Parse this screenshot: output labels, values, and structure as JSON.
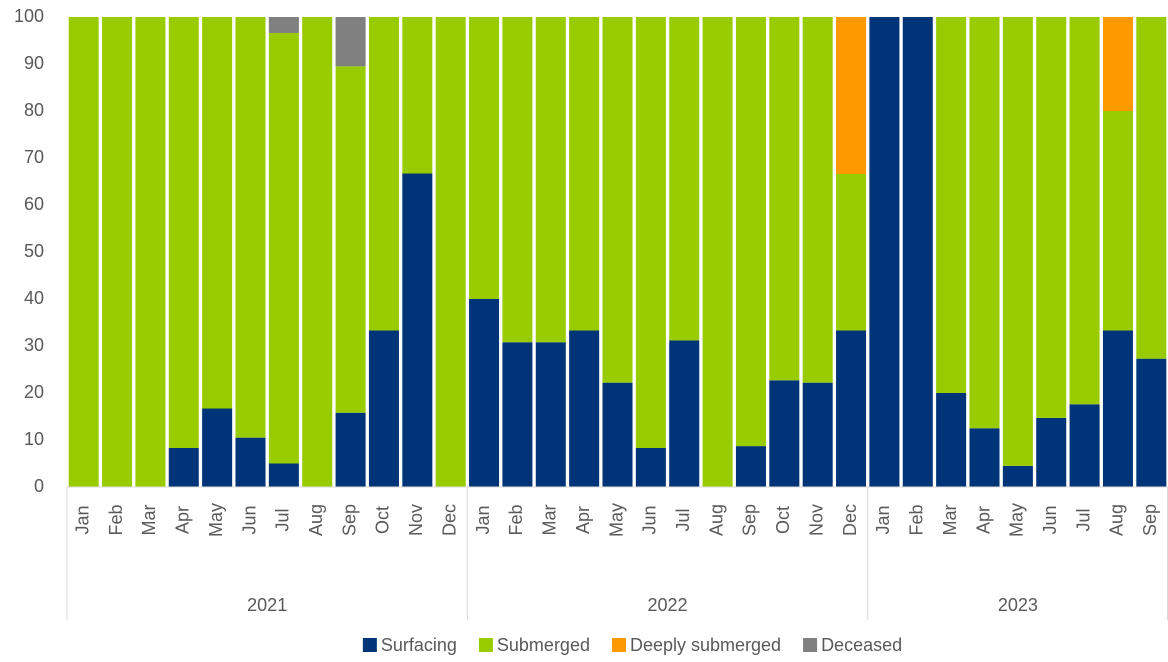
{
  "chart_data": {
    "type": "stacked-bar",
    "categories": [
      "Jan",
      "Feb",
      "Mar",
      "Apr",
      "May",
      "Jun",
      "Jul",
      "Aug",
      "Sep",
      "Oct",
      "Nov",
      "Dec",
      "Jan",
      "Feb",
      "Mar",
      "Apr",
      "May",
      "Jun",
      "Jul",
      "Aug",
      "Sep",
      "Oct",
      "Nov",
      "Dec",
      "Jan",
      "Feb",
      "Mar",
      "Apr",
      "May",
      "Jun",
      "Jul",
      "Aug",
      "Sep"
    ],
    "groups": [
      {
        "label": "2021",
        "size": 12
      },
      {
        "label": "2022",
        "size": 12
      },
      {
        "label": "2023",
        "size": 9
      }
    ],
    "series": [
      {
        "name": "Surfacing",
        "color": "#003478",
        "values": [
          0,
          0,
          0,
          8.3,
          16.7,
          10.5,
          5,
          0,
          15.8,
          33.3,
          66.7,
          0,
          40,
          30.8,
          30.8,
          33.3,
          22.2,
          8.3,
          31.2,
          0,
          8.7,
          22.7,
          22.2,
          33.3,
          100,
          100,
          20,
          12.5,
          4.5,
          14.7,
          17.6,
          33.3,
          27.3
        ]
      },
      {
        "name": "Submerged",
        "color": "#99cc00",
        "values": [
          100,
          100,
          100,
          91.7,
          83.3,
          89.5,
          91.6,
          100,
          73.7,
          66.7,
          33.3,
          100,
          60,
          69.2,
          69.2,
          66.7,
          77.8,
          91.7,
          68.8,
          100,
          91.3,
          77.3,
          77.8,
          33.3,
          0,
          0,
          80,
          87.5,
          95.5,
          85.3,
          82.4,
          46.7,
          72.7
        ]
      },
      {
        "name": "Deeply submerged",
        "color": "#ff9900",
        "values": [
          0,
          0,
          0,
          0,
          0,
          0,
          0,
          0,
          0,
          0,
          0,
          0,
          0,
          0,
          0,
          0,
          0,
          0,
          0,
          0,
          0,
          0,
          0,
          33.4,
          0,
          0,
          0,
          0,
          0,
          0,
          0,
          20,
          0
        ]
      },
      {
        "name": "Deceased",
        "color": "#808080",
        "values": [
          0,
          0,
          0,
          0,
          0,
          0,
          3.4,
          0,
          10.5,
          0,
          0,
          0,
          0,
          0,
          0,
          0,
          0,
          0,
          0,
          0,
          0,
          0,
          0,
          0,
          0,
          0,
          0,
          0,
          0,
          0,
          0,
          0,
          0
        ]
      }
    ],
    "ylim": [
      0,
      100
    ],
    "yticks": [
      0,
      10,
      20,
      30,
      40,
      50,
      60,
      70,
      80,
      90,
      100
    ],
    "grid": false,
    "legend": "bottom"
  }
}
